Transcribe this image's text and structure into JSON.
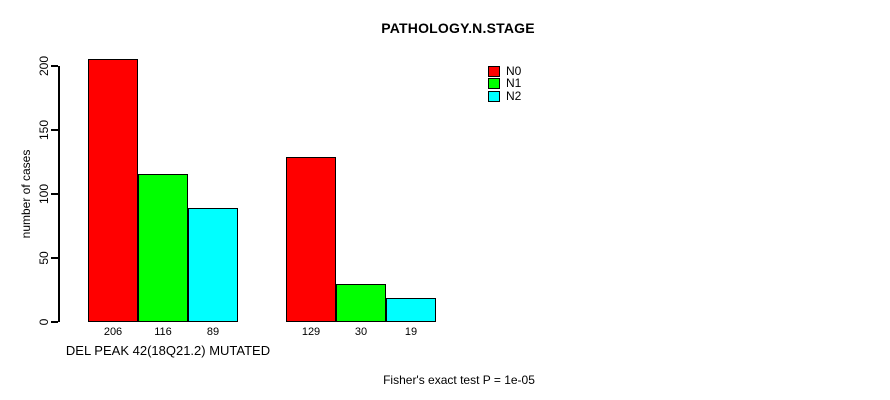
{
  "chart_data": {
    "type": "bar",
    "title": "PATHOLOGY.N.STAGE",
    "ylabel": "number of cases",
    "xlabel": "",
    "annotation": "Fisher's exact test P = 1e-05",
    "ylim": [
      0,
      200
    ],
    "yticks": [
      0,
      50,
      100,
      150,
      200
    ],
    "grid": false,
    "legend_position": "top-right",
    "series_names": [
      "N0",
      "N1",
      "N2"
    ],
    "legend": {
      "entries": [
        {
          "label": "N0",
          "color": "#ff0000"
        },
        {
          "label": "N1",
          "color": "#00ff00"
        },
        {
          "label": "N2",
          "color": "#00ffff"
        }
      ]
    },
    "groups": [
      {
        "label": "DEL PEAK 42(18Q21.2) MUTATED",
        "values": [
          206,
          116,
          89
        ]
      },
      {
        "label": "",
        "values": [
          129,
          30,
          19
        ]
      }
    ],
    "bar_value_labels": [
      "206",
      "116",
      "89",
      "129",
      "30",
      "19"
    ],
    "colors": {
      "background": "#ffffff",
      "text": "#000000",
      "axis": "#000000"
    }
  }
}
